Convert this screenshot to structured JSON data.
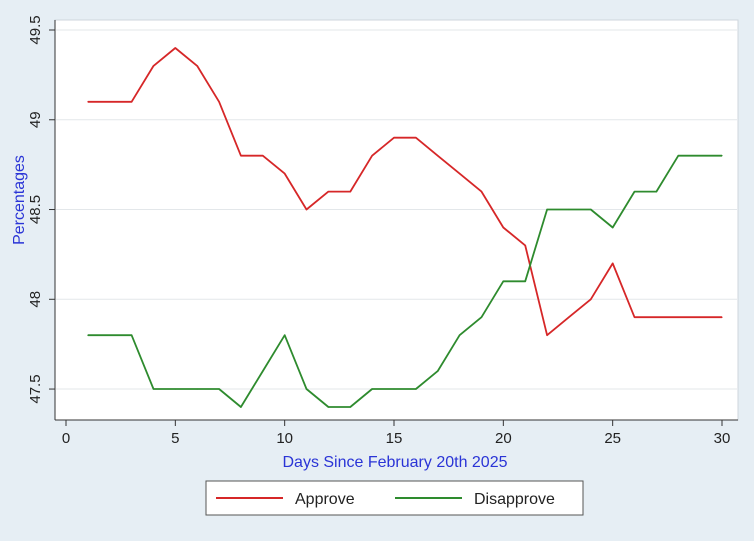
{
  "chart_data": {
    "type": "line",
    "title": "",
    "xlabel": "Days Since February 20th 2025",
    "ylabel": "Percentages",
    "xlim": [
      0,
      30
    ],
    "ylim": [
      47.4,
      49.5
    ],
    "xticks": [
      0,
      5,
      10,
      15,
      20,
      25,
      30
    ],
    "xtick_labels": [
      "0",
      "5",
      "10",
      "15",
      "20",
      "25",
      "30"
    ],
    "yticks": [
      47.5,
      48,
      48.5,
      49,
      49.5
    ],
    "ytick_labels": [
      "47.5",
      "48",
      "48.5",
      "49",
      "49.5"
    ],
    "grid": "horizontal",
    "legend_position": "bottom",
    "x": [
      1,
      2,
      3,
      4,
      5,
      6,
      7,
      8,
      9,
      10,
      11,
      12,
      13,
      14,
      15,
      16,
      17,
      18,
      19,
      20,
      21,
      22,
      23,
      24,
      25,
      26,
      27,
      28,
      29,
      30
    ],
    "series": [
      {
        "name": "Approve",
        "color": "#d62728",
        "values": [
          49.1,
          49.1,
          49.1,
          49.3,
          49.4,
          49.3,
          49.1,
          48.8,
          48.8,
          48.7,
          48.5,
          48.6,
          48.6,
          48.8,
          48.9,
          48.9,
          48.8,
          48.7,
          48.6,
          48.4,
          48.3,
          47.8,
          47.9,
          48.0,
          48.2,
          47.9,
          47.9,
          47.9,
          47.9,
          47.9
        ]
      },
      {
        "name": "Disapprove",
        "color": "#2e8b2e",
        "values": [
          47.8,
          47.8,
          47.8,
          47.5,
          47.5,
          47.5,
          47.5,
          47.4,
          47.6,
          47.8,
          47.5,
          47.4,
          47.4,
          47.5,
          47.5,
          47.5,
          47.6,
          47.8,
          47.9,
          48.1,
          48.1,
          48.5,
          48.5,
          48.5,
          48.4,
          48.6,
          48.6,
          48.8,
          48.8,
          48.8
        ]
      }
    ]
  }
}
